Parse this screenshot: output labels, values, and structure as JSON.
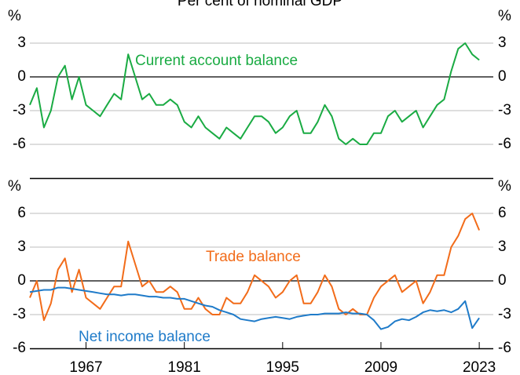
{
  "title": "Per cent of nominal GDP",
  "chart_data": [
    {
      "type": "line",
      "ylabel": "%",
      "ylim": [
        -9,
        6
      ],
      "yticks": [
        3,
        0,
        -3,
        -6
      ],
      "xlim": [
        1959,
        2025
      ],
      "x": [
        1959,
        1960,
        1961,
        1962,
        1963,
        1964,
        1965,
        1966,
        1967,
        1968,
        1969,
        1970,
        1971,
        1972,
        1973,
        1974,
        1975,
        1976,
        1977,
        1978,
        1979,
        1980,
        1981,
        1982,
        1983,
        1984,
        1985,
        1986,
        1987,
        1988,
        1989,
        1990,
        1991,
        1992,
        1993,
        1994,
        1995,
        1996,
        1997,
        1998,
        1999,
        2000,
        2001,
        2002,
        2003,
        2004,
        2005,
        2006,
        2007,
        2008,
        2009,
        2010,
        2011,
        2012,
        2013,
        2014,
        2015,
        2016,
        2017,
        2018,
        2019,
        2020,
        2021,
        2022,
        2023
      ],
      "series": [
        {
          "name": "Current account balance",
          "color": "#1aab43",
          "values": [
            -2.5,
            -1,
            -4.5,
            -3,
            0,
            1,
            -2,
            0,
            -2.5,
            -3,
            -3.5,
            -2.5,
            -1.5,
            -2,
            2,
            0,
            -2,
            -1.5,
            -2.5,
            -2.5,
            -2,
            -2.5,
            -4,
            -4.5,
            -3.5,
            -4.5,
            -5,
            -5.5,
            -4.5,
            -5,
            -5.5,
            -4.5,
            -3.5,
            -3.5,
            -4,
            -5,
            -4.5,
            -3.5,
            -3,
            -5,
            -5,
            -4,
            -2.5,
            -3.5,
            -5.5,
            -6,
            -5.5,
            -6,
            -6,
            -5,
            -5,
            -3.5,
            -3,
            -4,
            -3.5,
            -3,
            -4.5,
            -3.5,
            -2.5,
            -2,
            0.5,
            2.5,
            3,
            2,
            1.5
          ]
        }
      ]
    },
    {
      "type": "line",
      "ylabel": "%",
      "ylim": [
        -6,
        9
      ],
      "yticks": [
        6,
        3,
        0,
        -3,
        -6
      ],
      "xlim": [
        1959,
        2025
      ],
      "xticks": [
        1967,
        1981,
        1995,
        2009,
        2023
      ],
      "x": [
        1959,
        1960,
        1961,
        1962,
        1963,
        1964,
        1965,
        1966,
        1967,
        1968,
        1969,
        1970,
        1971,
        1972,
        1973,
        1974,
        1975,
        1976,
        1977,
        1978,
        1979,
        1980,
        1981,
        1982,
        1983,
        1984,
        1985,
        1986,
        1987,
        1988,
        1989,
        1990,
        1991,
        1992,
        1993,
        1994,
        1995,
        1996,
        1997,
        1998,
        1999,
        2000,
        2001,
        2002,
        2003,
        2004,
        2005,
        2006,
        2007,
        2008,
        2009,
        2010,
        2011,
        2012,
        2013,
        2014,
        2015,
        2016,
        2017,
        2018,
        2019,
        2020,
        2021,
        2022,
        2023
      ],
      "series": [
        {
          "name": "Trade balance",
          "color": "#f26c1a",
          "values": [
            -1.5,
            0,
            -3.5,
            -2,
            1,
            2,
            -1,
            1,
            -1.5,
            -2,
            -2.5,
            -1.5,
            -0.5,
            -0.5,
            3.5,
            1.5,
            -0.5,
            0,
            -1,
            -1,
            -0.5,
            -1,
            -2.5,
            -2.5,
            -1.5,
            -2.5,
            -3,
            -3,
            -1.5,
            -2,
            -2,
            -1,
            0.5,
            0,
            -0.5,
            -1.5,
            -1,
            0,
            0.5,
            -2,
            -2,
            -1,
            0.5,
            -0.5,
            -2.5,
            -3,
            -2.5,
            -3,
            -3,
            -1.5,
            -0.5,
            0,
            0.5,
            -1,
            -0.5,
            0,
            -2,
            -1,
            0.5,
            0.5,
            3,
            4,
            5.5,
            6,
            4.5
          ]
        },
        {
          "name": "Net income balance",
          "color": "#1f7bc9",
          "values": [
            -1,
            -0.9,
            -0.8,
            -0.8,
            -0.6,
            -0.6,
            -0.7,
            -0.8,
            -0.9,
            -1,
            -1.1,
            -1.2,
            -1.2,
            -1.3,
            -1.2,
            -1.2,
            -1.3,
            -1.4,
            -1.4,
            -1.5,
            -1.5,
            -1.6,
            -1.6,
            -1.8,
            -2,
            -2.2,
            -2.3,
            -2.6,
            -2.8,
            -3,
            -3.4,
            -3.5,
            -3.6,
            -3.4,
            -3.3,
            -3.2,
            -3.3,
            -3.4,
            -3.2,
            -3.1,
            -3,
            -3,
            -2.9,
            -2.9,
            -2.9,
            -2.8,
            -2.9,
            -2.9,
            -3,
            -3.5,
            -4.3,
            -4.1,
            -3.6,
            -3.4,
            -3.5,
            -3.2,
            -2.8,
            -2.6,
            -2.7,
            -2.6,
            -2.8,
            -2.5,
            -1.8,
            -4.2,
            -3.3
          ]
        }
      ]
    }
  ]
}
